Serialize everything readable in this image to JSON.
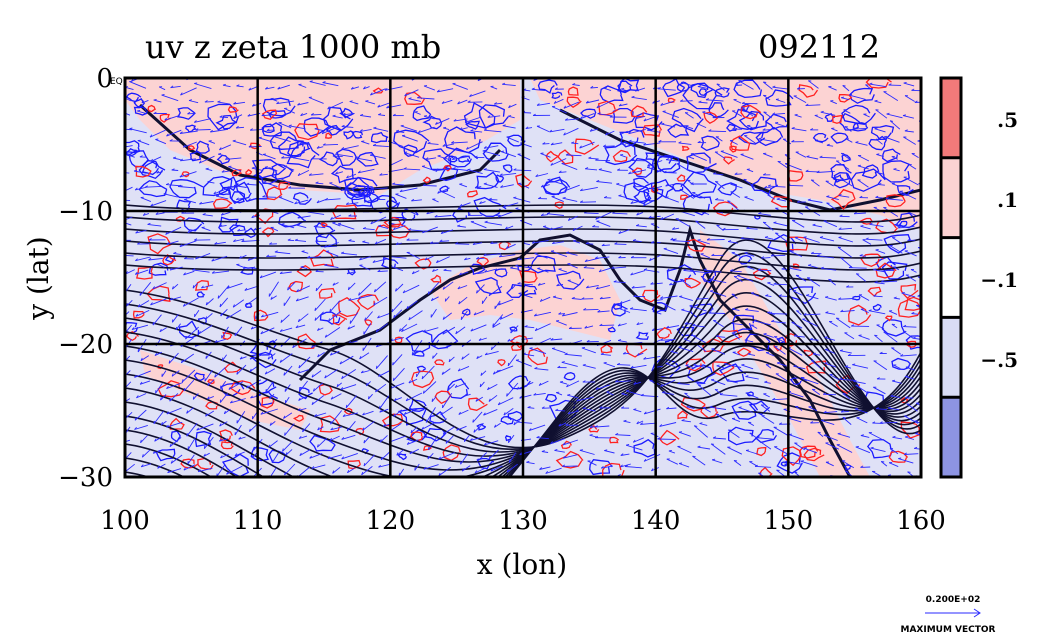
{
  "chart_data": {
    "type": "heatmap",
    "title": "uv z zeta 1000 mb",
    "date_label": "092112",
    "xlabel": "x (lon)",
    "ylabel": "y (lat)",
    "xlim": [
      100,
      160
    ],
    "ylim": [
      -30,
      0
    ],
    "x_ticks": [
      100,
      110,
      120,
      130,
      140,
      150,
      160
    ],
    "y_ticks": [
      0,
      -10,
      -20,
      -30
    ],
    "y_tick_labels": [
      "0",
      "−10",
      "−20",
      "−30"
    ],
    "grid": true,
    "grid_lon": [
      110,
      120,
      130,
      140,
      150
    ],
    "grid_lat": [
      -10,
      -20
    ],
    "corner_label": "EQ",
    "colorbar": {
      "levels": [
        ".5",
        ".1",
        "−.1",
        "−.5"
      ],
      "level_values": [
        0.5,
        0.1,
        -0.1,
        -0.5
      ],
      "colors": [
        "#f27a7a",
        "#fcd3d3",
        "#ffffff",
        "#d9dcf5",
        "#8d94e3"
      ]
    },
    "reference_vector": {
      "value_label": "0.200E+02",
      "caption": "MAXIMUM VECTOR"
    },
    "colors": {
      "positive_contour": "#ff2020",
      "negative_contour": "#1a1aff",
      "height_contour": "#101030",
      "vectors": "#2a2aff"
    }
  }
}
